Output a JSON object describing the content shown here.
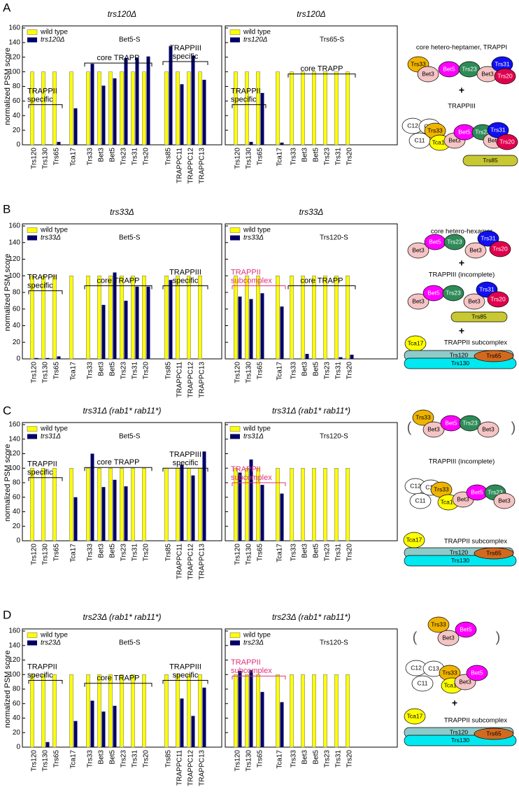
{
  "panels": [
    "A",
    "B",
    "C",
    "D"
  ],
  "chart_data": [
    {
      "type": "bar",
      "title": "trs120Δ",
      "bait_label": "Bet5-S",
      "y_label": "normalized PSM score",
      "categories": [
        "Trs120",
        "Trs130",
        "Trs65",
        "Tca17",
        "Trs33",
        "Bet3",
        "Bet5",
        "Trs23",
        "Trs31",
        "Trs20",
        "Trs85",
        "TRAPPC11",
        "TRAPPC12",
        "TRAPPC13"
      ],
      "series": [
        {
          "name": "wild type",
          "color": "#ffff00",
          "values": [
            100,
            100,
            100,
            100,
            100,
            100,
            100,
            100,
            100,
            100,
            100,
            100,
            100,
            100
          ]
        },
        {
          "name": "trs120Δ",
          "color": "#000066",
          "values": [
            0,
            0,
            4,
            50,
            111,
            81,
            91,
            119,
            119,
            121,
            135,
            83,
            122,
            89
          ]
        }
      ],
      "ylim": [
        0,
        160
      ],
      "yticks": [
        0,
        20,
        40,
        60,
        80,
        100,
        120,
        140,
        160
      ],
      "annotations": [
        {
          "lines": [
            "TRAPPII",
            "specific"
          ],
          "color": "#000000"
        },
        {
          "lines": [
            "core TRAPP"
          ],
          "color": "#000000"
        },
        {
          "lines": [
            "TRAPPIII",
            "specific"
          ],
          "color": "#000000"
        }
      ]
    },
    {
      "type": "bar",
      "title": "trs120Δ",
      "bait_label": "Trs65-S",
      "categories": [
        "Trs120",
        "Trs130",
        "Trs65",
        "Tca17",
        "Trs33",
        "Bet3",
        "Bet5",
        "Trs23",
        "Trs31",
        "Trs20"
      ],
      "series": [
        {
          "name": "wild type",
          "color": "#ffff00",
          "values": [
            100,
            100,
            100,
            100,
            100,
            100,
            100,
            100,
            100,
            100
          ]
        },
        {
          "name": "trs120Δ",
          "color": "#000066",
          "values": [
            0,
            4,
            71,
            3,
            0,
            0,
            0,
            0,
            0,
            0
          ]
        }
      ],
      "ylim": [
        0,
        160
      ],
      "yticks": [
        0,
        20,
        40,
        60,
        80,
        100,
        120,
        140,
        160
      ],
      "annotations": [
        {
          "lines": [
            "TRAPPII",
            "specific"
          ],
          "color": "#000000"
        },
        {
          "lines": [
            "core TRAPP"
          ],
          "color": "#000000"
        }
      ]
    },
    {
      "type": "bar",
      "title": "trs33Δ",
      "bait_label": "Bet5-S",
      "y_label": "normalized PSM score",
      "categories": [
        "Trs120",
        "Trs130",
        "Trs65",
        "Tca17",
        "Trs33",
        "Bet3",
        "Bet5",
        "Trs23",
        "Trs31",
        "Trs20",
        "Trs85",
        "TRAPPC11",
        "TRAPPC12",
        "TRAPPC13"
      ],
      "series": [
        {
          "name": "wild type",
          "color": "#ffff00",
          "values": [
            100,
            100,
            100,
            100,
            100,
            100,
            100,
            100,
            100,
            100,
            100,
            100,
            100,
            100
          ]
        },
        {
          "name": "trs33Δ",
          "color": "#000066",
          "values": [
            1,
            1,
            3,
            0,
            0,
            65,
            104,
            70,
            87,
            87,
            95,
            0,
            0,
            0
          ]
        }
      ],
      "ylim": [
        0,
        160
      ],
      "yticks": [
        0,
        20,
        40,
        60,
        80,
        100,
        120,
        140,
        160
      ],
      "annotations": [
        {
          "lines": [
            "TRAPPII",
            "specific"
          ],
          "color": "#000000"
        },
        {
          "lines": [
            "core TRAPP"
          ],
          "color": "#000000"
        },
        {
          "lines": [
            "TRAPPIII",
            "specific"
          ],
          "color": "#000000"
        }
      ]
    },
    {
      "type": "bar",
      "title": "trs33Δ",
      "bait_label": "Trs120-S",
      "categories": [
        "Trs120",
        "Trs130",
        "Trs65",
        "Tca17",
        "Trs33",
        "Bet3",
        "Bet5",
        "Trs23",
        "Trs31",
        "Trs20"
      ],
      "series": [
        {
          "name": "wild type",
          "color": "#ffff00",
          "values": [
            100,
            100,
            100,
            100,
            100,
            100,
            100,
            100,
            100,
            100
          ]
        },
        {
          "name": "trs33Δ",
          "color": "#000066",
          "values": [
            75,
            72,
            79,
            63,
            0,
            6,
            0,
            0,
            2,
            5
          ]
        }
      ],
      "ylim": [
        0,
        160
      ],
      "yticks": [
        0,
        20,
        40,
        60,
        80,
        100,
        120,
        140,
        160
      ],
      "annotations": [
        {
          "lines": [
            "TRAPPII",
            "subcomplex"
          ],
          "color": "#e0307a"
        },
        {
          "lines": [
            "core TRAPP"
          ],
          "color": "#000000"
        }
      ]
    },
    {
      "type": "bar",
      "title": "trs31Δ (rab1* rab11*)",
      "bait_label": "Bet5-S",
      "y_label": "normalized PSM score",
      "categories": [
        "Trs120",
        "Trs130",
        "Trs65",
        "Tca17",
        "Trs33",
        "Bet3",
        "Bet5",
        "Trs23",
        "Trs31",
        "Trs20",
        "Trs85",
        "TRAPPC11",
        "TRAPPC12",
        "TRAPPC13"
      ],
      "series": [
        {
          "name": "wild type",
          "color": "#ffff00",
          "values": [
            100,
            100,
            100,
            100,
            100,
            100,
            100,
            100,
            100,
            100,
            100,
            100,
            100,
            100
          ]
        },
        {
          "name": "trs31Δ",
          "color": "#000066",
          "values": [
            0,
            0,
            0,
            60,
            120,
            74,
            84,
            75,
            0,
            0,
            0,
            105,
            90,
            123
          ]
        }
      ],
      "ylim": [
        0,
        160
      ],
      "yticks": [
        0,
        20,
        40,
        60,
        80,
        100,
        120,
        140,
        160
      ],
      "annotations": [
        {
          "lines": [
            "TRAPPII",
            "specific"
          ],
          "color": "#000000"
        },
        {
          "lines": [
            "core TRAPP"
          ],
          "color": "#000000"
        },
        {
          "lines": [
            "TRAPPIII",
            "specific"
          ],
          "color": "#000000"
        }
      ]
    },
    {
      "type": "bar",
      "title": "trs31Δ (rab1* rab11*)",
      "bait_label": "Trs120-S",
      "categories": [
        "Trs120",
        "Trs130",
        "Trs65",
        "Tca17",
        "Trs33",
        "Bet3",
        "Bet5",
        "Trs23",
        "Trs31",
        "Trs20"
      ],
      "series": [
        {
          "name": "wild type",
          "color": "#ffff00",
          "values": [
            100,
            100,
            100,
            100,
            100,
            100,
            100,
            100,
            100,
            100
          ]
        },
        {
          "name": "trs31Δ",
          "color": "#000066",
          "values": [
            94,
            112,
            77,
            65,
            0,
            0,
            0,
            0,
            0,
            0
          ]
        }
      ],
      "ylim": [
        0,
        160
      ],
      "yticks": [
        0,
        20,
        40,
        60,
        80,
        100,
        120,
        140,
        160
      ],
      "annotations": [
        {
          "lines": [
            "TRAPPII",
            "subcomplex"
          ],
          "color": "#e0307a"
        }
      ]
    },
    {
      "type": "bar",
      "title": "trs23Δ (rab1* rab11*)",
      "bait_label": "Bet5-S",
      "y_label": "normalized PSM score",
      "categories": [
        "Trs120",
        "Trs130",
        "Trs65",
        "Tca17",
        "Trs33",
        "Bet3",
        "Bet5",
        "Trs23",
        "Trs31",
        "Trs20",
        "Trs85",
        "TRAPPC11",
        "TRAPPC12",
        "TRAPPC13"
      ],
      "series": [
        {
          "name": "wild type",
          "color": "#ffff00",
          "values": [
            100,
            100,
            100,
            100,
            100,
            100,
            100,
            100,
            100,
            100,
            100,
            100,
            100,
            100
          ]
        },
        {
          "name": "trs23Δ",
          "color": "#000066",
          "values": [
            0,
            7,
            0,
            36,
            64,
            49,
            57,
            0,
            0,
            0,
            0,
            67,
            43,
            82
          ]
        }
      ],
      "ylim": [
        0,
        160
      ],
      "yticks": [
        0,
        20,
        40,
        60,
        80,
        100,
        120,
        140,
        160
      ],
      "annotations": [
        {
          "lines": [
            "TRAPPII",
            "specific"
          ],
          "color": "#000000"
        },
        {
          "lines": [
            "core TRAPP"
          ],
          "color": "#000000"
        },
        {
          "lines": [
            "TRAPPIII",
            "specific"
          ],
          "color": "#000000"
        }
      ]
    },
    {
      "type": "bar",
      "title": "trs23Δ (rab1* rab11*)",
      "bait_label": "Trs120-S",
      "categories": [
        "Trs120",
        "Trs130",
        "Trs65",
        "Tca17",
        "Trs33",
        "Bet3",
        "Bet5",
        "Trs23",
        "Trs31",
        "Trs20"
      ],
      "series": [
        {
          "name": "wild type",
          "color": "#ffff00",
          "values": [
            100,
            100,
            100,
            100,
            100,
            100,
            100,
            100,
            100,
            100
          ]
        },
        {
          "name": "trs23Δ",
          "color": "#000066",
          "values": [
            105,
            106,
            76,
            62,
            0,
            0,
            0,
            0,
            0,
            0
          ]
        }
      ],
      "ylim": [
        0,
        160
      ],
      "yticks": [
        0,
        20,
        40,
        60,
        80,
        100,
        120,
        140,
        160
      ],
      "annotations": [
        {
          "lines": [
            "TRAPPII",
            "subcomplex"
          ],
          "color": "#e0307a"
        }
      ]
    }
  ],
  "diagrams": [
    [
      "core hetero-heptamer, TRAPPI",
      "Trs33",
      "Bet3",
      "Bet5",
      "Trs23",
      "Bet3",
      "Trs31",
      "Trs20",
      "+",
      "TRAPPIII",
      "C12",
      "C13",
      "C11",
      "Trs33",
      "Tca17",
      "Bet3",
      "Bet5",
      "Trs23",
      "Bet3",
      "Trs31",
      "Trs20",
      "Trs85"
    ],
    [
      "core hetero-hexamer",
      "Bet3",
      "Bet5",
      "Trs23",
      "Bet3",
      "Trs31",
      "Trs20",
      "+",
      "TRAPPIII (incomplete)",
      "Bet3",
      "Bet5",
      "Trs23",
      "Bet3",
      "Trs31",
      "Trs20",
      "Trs85",
      "+",
      "Tca17",
      "TRAPPII subcomplex",
      "Trs120",
      "Trs130",
      "Trs65"
    ],
    [
      "(",
      ")",
      "Trs33",
      "Bet3",
      "Bet5",
      "Trs23",
      "Bet3",
      "TRAPPIII (incomplete)",
      "C12",
      "C13",
      "C11",
      "Trs33",
      "Tca17",
      "Bet3",
      "Bet5",
      "Trs23",
      "Bet3",
      "Tca17",
      "TRAPPII subcomplex",
      "Trs120",
      "Trs130",
      "Trs65"
    ],
    [
      "(",
      ")",
      "Trs33",
      "Bet3",
      "Bet5",
      "C12",
      "C13",
      "C11",
      "Trs33",
      "Tca17",
      "Bet3",
      "Bet5",
      "+",
      "Tca17",
      "TRAPPII subcomplex",
      "Trs120",
      "Trs130",
      "Trs65"
    ]
  ]
}
